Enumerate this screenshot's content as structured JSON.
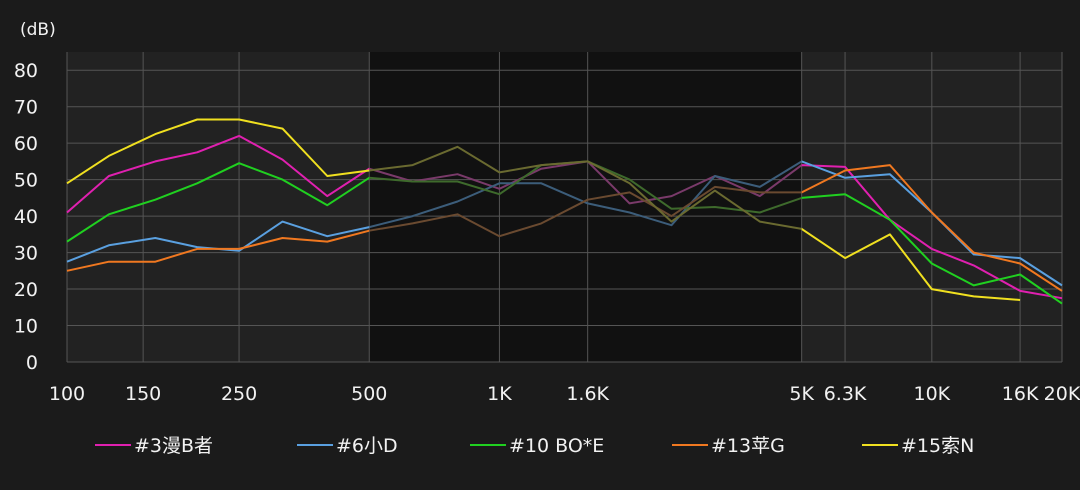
{
  "chart_data": {
    "type": "line",
    "ylabel": "(dB)",
    "ylim": [
      0,
      85
    ],
    "yticks": [
      0,
      10,
      20,
      30,
      40,
      50,
      60,
      70,
      80
    ],
    "x_scale": "log",
    "xlim": [
      100,
      20000
    ],
    "x_tick_values": [
      100,
      150,
      250,
      500,
      1000,
      1600,
      5000,
      6300,
      10000,
      16000,
      20000
    ],
    "x_tick_labels": [
      "100",
      "150",
      "250",
      "500",
      "1K",
      "1.6K",
      "5K",
      "6.3K",
      "10K",
      "16K",
      "20K"
    ],
    "grid": true,
    "legend_position": "bottom",
    "dimmed_range": [
      500,
      5000
    ],
    "colors": {
      "background": "#1b1b1b",
      "plot_background": "#222222",
      "dimmed_background": "#111111",
      "grid": "#555555",
      "text": "#f2f2f2"
    },
    "series": [
      {
        "name": "#3漫B者",
        "color": "#e020b0",
        "x": [
          100,
          125,
          160,
          200,
          250,
          315,
          400,
          500,
          630,
          800,
          1000,
          1250,
          1600,
          2000,
          2500,
          3150,
          4000,
          5000,
          6300,
          8000,
          10000,
          12500,
          16000,
          20000
        ],
        "y": [
          41,
          51,
          55,
          57.5,
          62,
          55.5,
          45.5,
          53,
          49.5,
          51.5,
          47.5,
          53,
          55,
          43.5,
          45.5,
          51,
          45.5,
          54,
          53.5,
          39,
          31,
          26.5,
          19.5,
          17.5
        ]
      },
      {
        "name": "#6小D",
        "color": "#5aa0e0",
        "x": [
          100,
          125,
          160,
          200,
          250,
          315,
          400,
          500,
          630,
          800,
          1000,
          1250,
          1600,
          2000,
          2500,
          3150,
          4000,
          5000,
          6300,
          8000,
          10000,
          12500,
          16000,
          20000
        ],
        "y": [
          27.5,
          32,
          34,
          31.5,
          30.5,
          38.5,
          34.5,
          37,
          40,
          44,
          49,
          49,
          43.5,
          41,
          37.5,
          51,
          48,
          55,
          50.5,
          51.5,
          41,
          29.5,
          28.5,
          21
        ]
      },
      {
        "name": "#10 BO*E",
        "color": "#20d020",
        "x": [
          100,
          125,
          160,
          200,
          250,
          315,
          400,
          500,
          630,
          800,
          1000,
          1250,
          1600,
          2000,
          2500,
          3150,
          4000,
          5000,
          6300,
          8000,
          10000,
          12500,
          16000,
          20000
        ],
        "y": [
          33,
          40.5,
          44.5,
          49,
          54.5,
          50,
          43,
          50.5,
          49.5,
          49.5,
          46,
          54,
          55,
          50,
          42,
          42.5,
          41,
          45,
          46,
          39,
          27,
          21,
          24,
          16
        ]
      },
      {
        "name": "#13苹G",
        "color": "#f07820",
        "x": [
          100,
          125,
          160,
          200,
          250,
          315,
          400,
          500,
          630,
          800,
          1000,
          1250,
          1600,
          2000,
          2500,
          3150,
          4000,
          5000,
          6300,
          8000,
          10000,
          12500,
          16000,
          20000
        ],
        "y": [
          25,
          27.5,
          27.5,
          31,
          31,
          34,
          33,
          36,
          38,
          40.5,
          34.5,
          38,
          44.5,
          46.5,
          40,
          48,
          46.5,
          46.5,
          52.5,
          54,
          41,
          30,
          27,
          19.5
        ]
      },
      {
        "name": "#15索N",
        "color": "#f0e020",
        "x": [
          100,
          125,
          160,
          200,
          250,
          315,
          400,
          500,
          630,
          800,
          1000,
          1250,
          1600,
          2000,
          2500,
          3150,
          4000,
          5000,
          6300,
          8000,
          10000,
          12500,
          16000
        ],
        "y": [
          49,
          56.5,
          62.5,
          66.5,
          66.5,
          64,
          51,
          52.5,
          54,
          59,
          52,
          54,
          55,
          49,
          38.5,
          47,
          38.5,
          36.5,
          28.5,
          35,
          20,
          18,
          17
        ]
      }
    ]
  }
}
